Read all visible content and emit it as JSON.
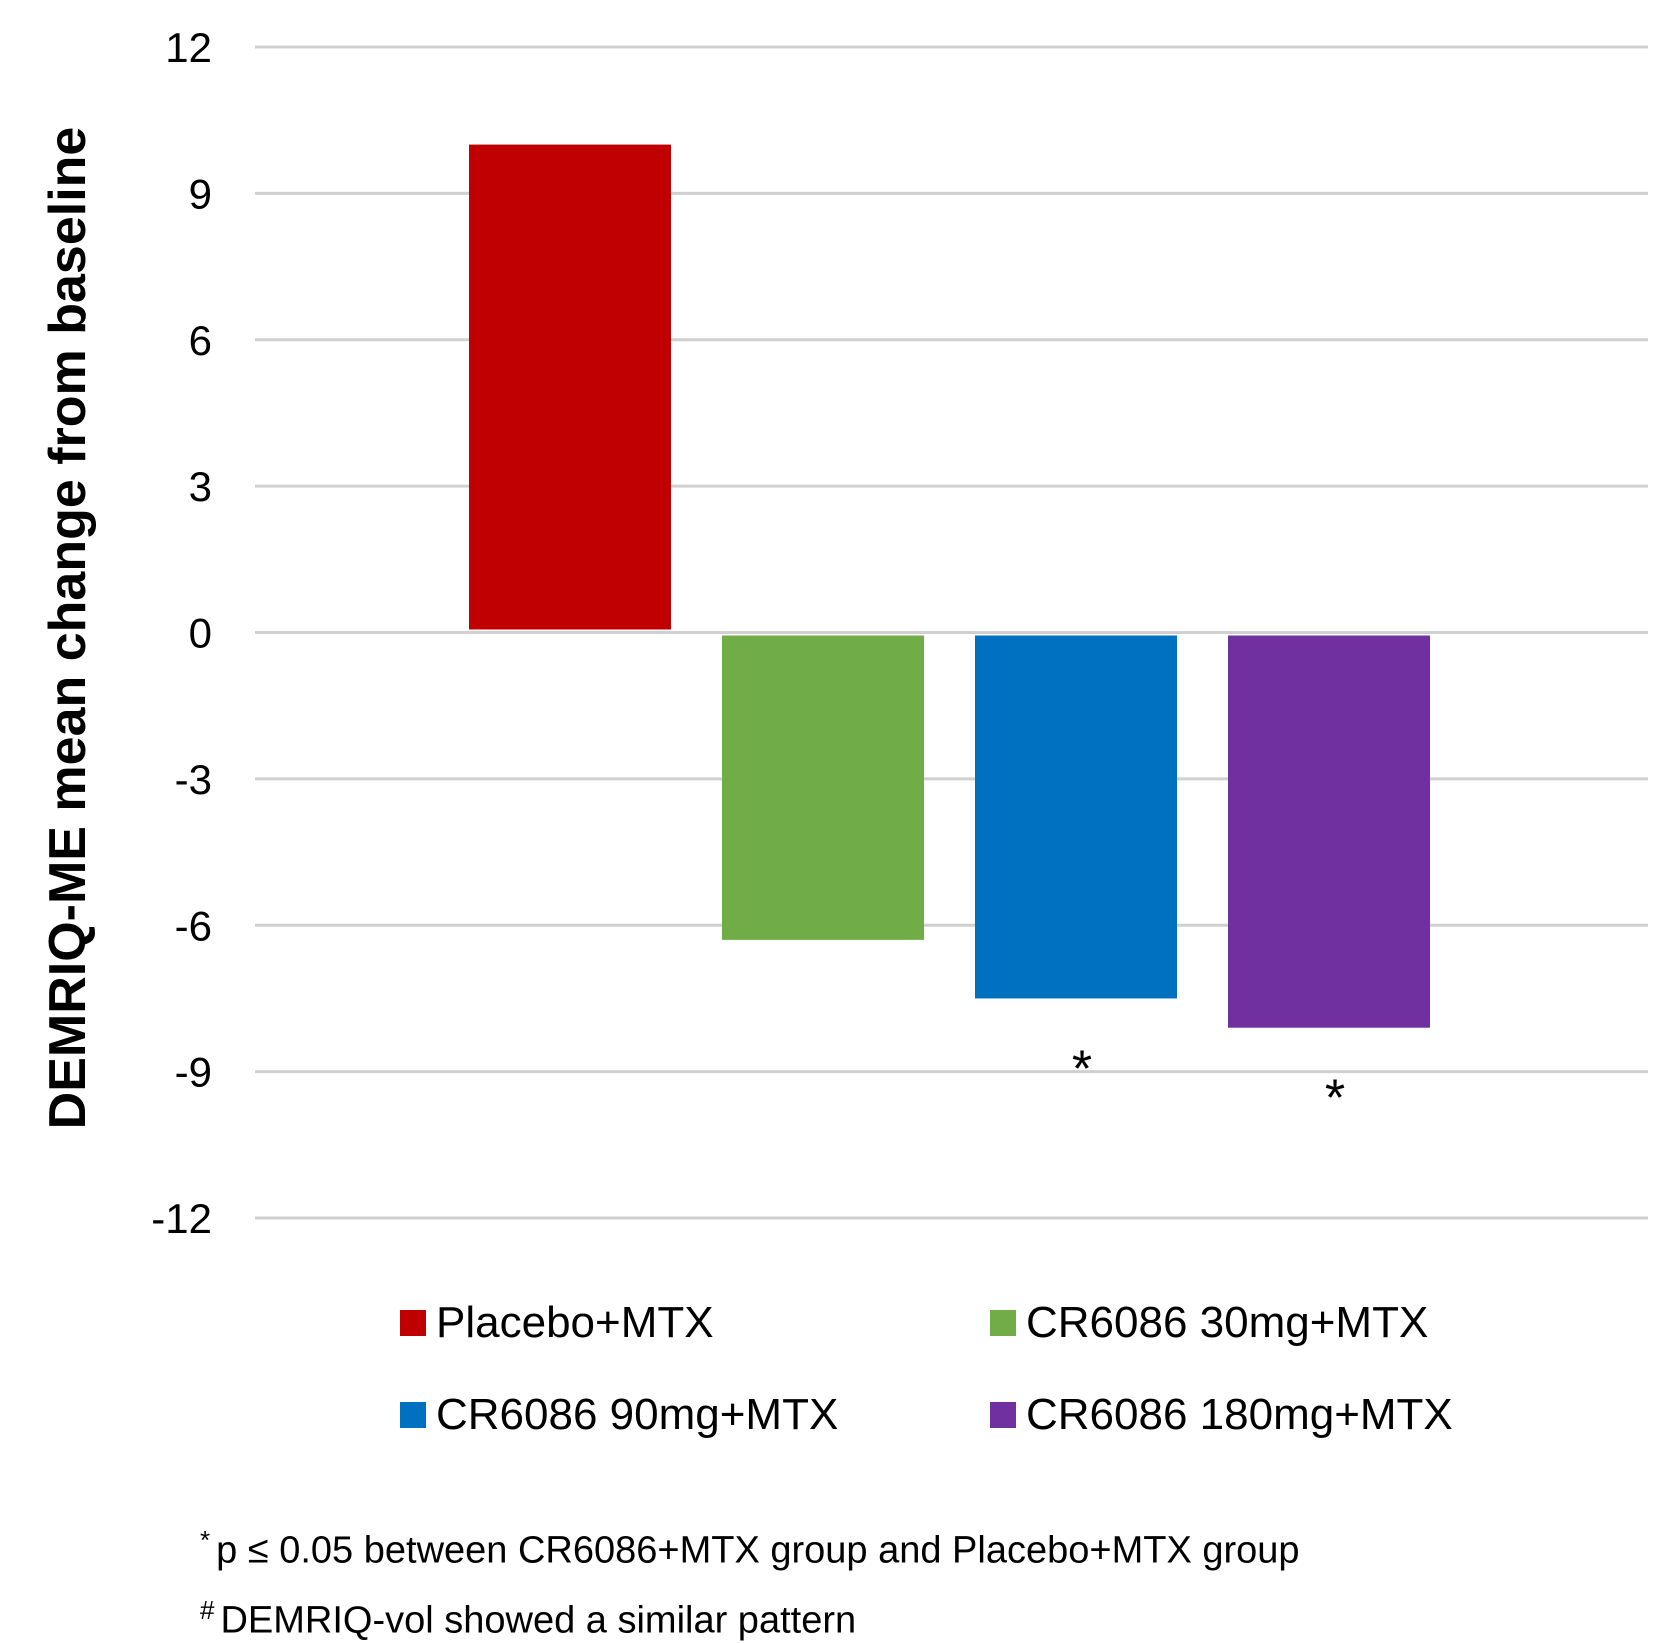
{
  "chart_data": {
    "type": "bar",
    "title": "",
    "xlabel": "",
    "ylabel": "DEMRIQ-ME mean change from baseline",
    "ylim": [
      -12,
      12
    ],
    "yticks": [
      12,
      9,
      6,
      3,
      0,
      -3,
      -6,
      -9,
      -12
    ],
    "grid": true,
    "legend_position": "bottom",
    "categories": [
      "Placebo+MTX",
      "CR6086 30mg+MTX",
      "CR6086 90mg+MTX",
      "CR6086 180mg+MTX"
    ],
    "values": [
      10.0,
      -6.3,
      -7.5,
      -8.1
    ],
    "colors": [
      "#C00000",
      "#70AD47",
      "#0070C0",
      "#7030A0"
    ],
    "annotations": [
      "",
      "",
      "*",
      "*"
    ]
  },
  "footnotes": [
    {
      "mark": "*",
      "text": "p ≤ 0.05 between CR6086+MTX group and Placebo+MTX group"
    },
    {
      "mark": "#",
      "text": "DEMRIQ-vol showed a similar pattern"
    }
  ]
}
